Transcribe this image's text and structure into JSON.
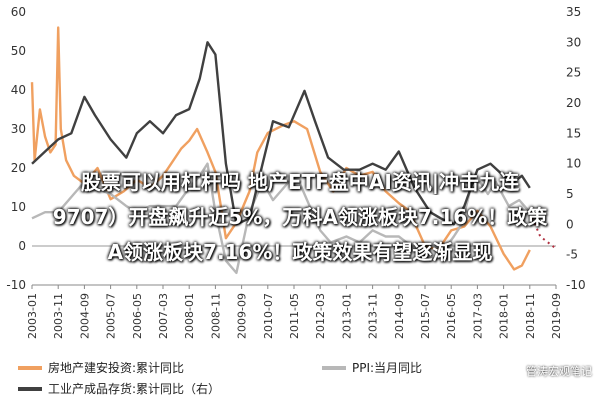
{
  "overlay": {
    "line1": "股票可以用杠杆吗 地产ETF盘中AI资讯|冲击九连",
    "line2": "9707）开盘飙升近5%，万科A领涨板块7.16%！政策",
    "line3": "A领涨板块7.16%！政策效果有望逐渐显现"
  },
  "watermark": "管涛宏观笔记",
  "chart_data": {
    "type": "line",
    "title": "",
    "xlabel": "",
    "ylabel": "",
    "x_ticks": [
      "2003-01",
      "2003-11",
      "2004-09",
      "2005-07",
      "2006-05",
      "2007-03",
      "2008-01",
      "2008-11",
      "2009-09",
      "2010-07",
      "2011-05",
      "2012-03",
      "2013-01",
      "2013-11",
      "2014-09",
      "2015-07",
      "2016-05",
      "2017-03",
      "2018-01",
      "2018-11",
      "2019-09"
    ],
    "xlim": [
      "2003-01",
      "2019-09"
    ],
    "y_left": {
      "lim": [
        -10,
        60
      ],
      "ticks": [
        "-10",
        "0",
        "10",
        "20",
        "30",
        "40",
        "50",
        "60"
      ]
    },
    "y_right": {
      "lim": [
        -10,
        35
      ],
      "ticks": [
        "-10",
        "-5",
        "0",
        "5",
        "10",
        "15",
        "20",
        "25",
        "30",
        "35"
      ]
    },
    "grid": false,
    "legend_position": "bottom",
    "series": [
      {
        "name": "房地产建安投资:累计同比",
        "axis": "left",
        "color": "#f0a060",
        "points": [
          [
            "2003-01",
            42
          ],
          [
            "2003-02",
            22
          ],
          [
            "2003-04",
            35
          ],
          [
            "2003-06",
            28
          ],
          [
            "2003-08",
            24
          ],
          [
            "2003-10",
            26
          ],
          [
            "2003-11",
            56
          ],
          [
            "2003-12",
            30
          ],
          [
            "2004-02",
            22
          ],
          [
            "2004-05",
            18
          ],
          [
            "2004-09",
            16
          ],
          [
            "2005-02",
            20
          ],
          [
            "2005-07",
            12
          ],
          [
            "2005-12",
            14
          ],
          [
            "2006-05",
            17
          ],
          [
            "2006-10",
            15
          ],
          [
            "2007-03",
            18
          ],
          [
            "2007-06",
            21
          ],
          [
            "2007-10",
            25
          ],
          [
            "2008-01",
            27
          ],
          [
            "2008-04",
            30
          ],
          [
            "2008-08",
            24
          ],
          [
            "2008-11",
            19
          ],
          [
            "2009-03",
            2
          ],
          [
            "2009-07",
            6
          ],
          [
            "2009-12",
            14
          ],
          [
            "2010-03",
            24
          ],
          [
            "2010-07",
            29
          ],
          [
            "2011-01",
            31
          ],
          [
            "2011-05",
            32
          ],
          [
            "2011-10",
            30
          ],
          [
            "2012-03",
            19
          ],
          [
            "2012-08",
            14
          ],
          [
            "2013-01",
            20
          ],
          [
            "2013-06",
            18
          ],
          [
            "2013-11",
            19
          ],
          [
            "2014-04",
            14
          ],
          [
            "2014-09",
            11
          ],
          [
            "2015-01",
            9
          ],
          [
            "2015-07",
            0
          ],
          [
            "2015-12",
            -1
          ],
          [
            "2016-05",
            4
          ],
          [
            "2016-10",
            5
          ],
          [
            "2017-03",
            9
          ],
          [
            "2017-08",
            5
          ],
          [
            "2018-01",
            -2
          ],
          [
            "2018-05",
            -6
          ],
          [
            "2018-08",
            -5
          ],
          [
            "2018-11",
            -1
          ]
        ]
      },
      {
        "name": "PPI:当月同比",
        "axis": "right",
        "color": "#b8b8b8",
        "points": [
          [
            "2003-01",
            1
          ],
          [
            "2003-06",
            2
          ],
          [
            "2003-11",
            2
          ],
          [
            "2004-05",
            5
          ],
          [
            "2004-09",
            7
          ],
          [
            "2005-01",
            6
          ],
          [
            "2005-07",
            5
          ],
          [
            "2006-01",
            3
          ],
          [
            "2006-05",
            2
          ],
          [
            "2006-10",
            3
          ],
          [
            "2007-03",
            3
          ],
          [
            "2007-08",
            3
          ],
          [
            "2008-01",
            6
          ],
          [
            "2008-05",
            8
          ],
          [
            "2008-08",
            10
          ],
          [
            "2008-11",
            2
          ],
          [
            "2009-03",
            -6
          ],
          [
            "2009-07",
            -8
          ],
          [
            "2009-12",
            2
          ],
          [
            "2010-05",
            7
          ],
          [
            "2010-09",
            4
          ],
          [
            "2011-03",
            7
          ],
          [
            "2011-07",
            7
          ],
          [
            "2011-12",
            2
          ],
          [
            "2012-03",
            -1
          ],
          [
            "2012-07",
            -3
          ],
          [
            "2013-01",
            -2
          ],
          [
            "2013-06",
            -3
          ],
          [
            "2013-11",
            -1
          ],
          [
            "2014-04",
            -2
          ],
          [
            "2014-09",
            -2
          ],
          [
            "2015-03",
            -4
          ],
          [
            "2015-09",
            -6
          ],
          [
            "2016-01",
            -5
          ],
          [
            "2016-06",
            -2
          ],
          [
            "2016-09",
            0
          ],
          [
            "2017-01",
            7
          ],
          [
            "2017-04",
            7
          ],
          [
            "2017-07",
            5
          ],
          [
            "2017-10",
            7
          ],
          [
            "2018-03",
            3
          ],
          [
            "2018-07",
            4
          ],
          [
            "2018-11",
            2
          ],
          [
            "2019-03",
            0
          ],
          [
            "2019-06",
            0
          ]
        ]
      },
      {
        "name": "工业产成品存货:累计同比（右）",
        "axis": "right",
        "color": "#404040",
        "points": [
          [
            "2003-01",
            10
          ],
          [
            "2003-06",
            12
          ],
          [
            "2003-11",
            14
          ],
          [
            "2004-04",
            15
          ],
          [
            "2004-09",
            21
          ],
          [
            "2005-01",
            18
          ],
          [
            "2005-07",
            14
          ],
          [
            "2006-01",
            11
          ],
          [
            "2006-05",
            15
          ],
          [
            "2006-10",
            17
          ],
          [
            "2007-03",
            15
          ],
          [
            "2007-08",
            18
          ],
          [
            "2008-01",
            19
          ],
          [
            "2008-05",
            24
          ],
          [
            "2008-08",
            30
          ],
          [
            "2008-11",
            28
          ],
          [
            "2009-03",
            10
          ],
          [
            "2009-07",
            0
          ],
          [
            "2009-12",
            1
          ],
          [
            "2010-05",
            10
          ],
          [
            "2010-09",
            17
          ],
          [
            "2011-03",
            16
          ],
          [
            "2011-09",
            22
          ],
          [
            "2012-01",
            17
          ],
          [
            "2012-06",
            11
          ],
          [
            "2012-12",
            9
          ],
          [
            "2013-06",
            9
          ],
          [
            "2013-11",
            10
          ],
          [
            "2014-04",
            9
          ],
          [
            "2014-09",
            12
          ],
          [
            "2015-03",
            6
          ],
          [
            "2015-09",
            2
          ],
          [
            "2016-01",
            1
          ],
          [
            "2016-06",
            0
          ],
          [
            "2016-10",
            3
          ],
          [
            "2017-03",
            9
          ],
          [
            "2017-08",
            10
          ],
          [
            "2018-01",
            8
          ],
          [
            "2018-05",
            7
          ],
          [
            "2018-08",
            8
          ],
          [
            "2018-11",
            6
          ]
        ]
      },
      {
        "name": "",
        "axis": "right",
        "color": "#b03040",
        "style": "dotted",
        "points": [
          [
            "2018-11",
            2
          ],
          [
            "2019-03",
            -2
          ],
          [
            "2019-09",
            -4
          ]
        ]
      }
    ]
  }
}
